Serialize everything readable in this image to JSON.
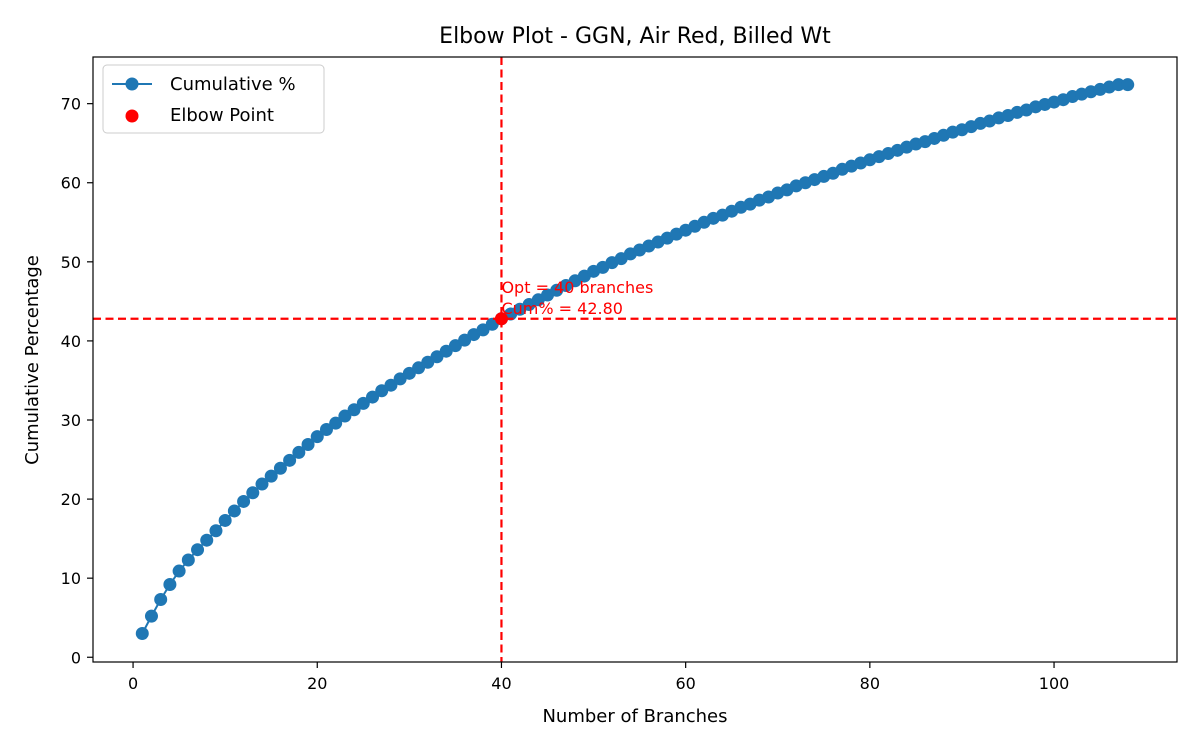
{
  "chart_data": {
    "type": "line",
    "title": "Elbow Plot - GGN, Air Red, Billed Wt",
    "xlabel": "Number of Branches",
    "ylabel": "Cumulative Percentage",
    "xlim": [
      -4.35,
      113.35
    ],
    "ylim": [
      -0.6,
      75.9
    ],
    "x_ticks": [
      0,
      20,
      40,
      60,
      80,
      100
    ],
    "y_ticks": [
      0,
      10,
      20,
      30,
      40,
      50,
      60,
      70
    ],
    "grid": false,
    "legend_position": "top-left",
    "series": [
      {
        "name": "Cumulative %",
        "color": "#1f77b4",
        "marker": "circle",
        "x": [
          1,
          2,
          3,
          4,
          5,
          6,
          7,
          8,
          9,
          10,
          11,
          12,
          13,
          14,
          15,
          16,
          17,
          18,
          19,
          20,
          21,
          22,
          23,
          24,
          25,
          26,
          27,
          28,
          29,
          30,
          31,
          32,
          33,
          34,
          35,
          36,
          37,
          38,
          39,
          40,
          41,
          42,
          43,
          44,
          45,
          46,
          47,
          48,
          49,
          50,
          51,
          52,
          53,
          54,
          55,
          56,
          57,
          58,
          59,
          60,
          61,
          62,
          63,
          64,
          65,
          66,
          67,
          68,
          69,
          70,
          71,
          72,
          73,
          74,
          75,
          76,
          77,
          78,
          79,
          80,
          81,
          82,
          83,
          84,
          85,
          86,
          87,
          88,
          89,
          90,
          91,
          92,
          93,
          94,
          95,
          96,
          97,
          98,
          99,
          100,
          101,
          102,
          103,
          104,
          105,
          106,
          107,
          108
        ],
        "y": [
          3.0,
          5.2,
          7.3,
          9.2,
          10.9,
          12.3,
          13.6,
          14.8,
          16.0,
          17.3,
          18.5,
          19.7,
          20.8,
          21.9,
          22.9,
          23.9,
          24.9,
          25.9,
          26.9,
          27.9,
          28.8,
          29.6,
          30.5,
          31.3,
          32.1,
          32.9,
          33.7,
          34.4,
          35.2,
          35.9,
          36.6,
          37.3,
          38.0,
          38.7,
          39.4,
          40.1,
          40.8,
          41.4,
          42.1,
          42.8,
          43.4,
          44.0,
          44.6,
          45.2,
          45.8,
          46.4,
          47.0,
          47.6,
          48.2,
          48.8,
          49.3,
          49.9,
          50.4,
          51.0,
          51.5,
          52.0,
          52.5,
          53.0,
          53.5,
          54.0,
          54.5,
          55.0,
          55.5,
          55.9,
          56.4,
          56.9,
          57.3,
          57.8,
          58.2,
          58.7,
          59.1,
          59.6,
          60.0,
          60.4,
          60.8,
          61.2,
          61.7,
          62.1,
          62.5,
          62.9,
          63.3,
          63.7,
          64.1,
          64.5,
          64.9,
          65.2,
          65.6,
          66.0,
          66.4,
          66.7,
          67.1,
          67.5,
          67.8,
          68.2,
          68.5,
          68.9,
          69.2,
          69.6,
          69.9,
          70.2,
          70.5,
          70.9,
          71.2,
          71.5,
          71.8,
          72.1,
          72.4,
          72.4
        ]
      },
      {
        "name": "Elbow Point",
        "color": "#ff0000",
        "marker": "circle",
        "x": [
          40
        ],
        "y": [
          42.8
        ]
      }
    ],
    "reference_lines": {
      "vertical_x": 40,
      "horizontal_y": 42.8,
      "color": "#ff0000",
      "style": "dashed"
    },
    "annotation": {
      "x": 40,
      "y": 42.8,
      "line1": "Opt = 40 branches",
      "line2": "Cum% = 42.80",
      "color": "#ff0000"
    }
  }
}
